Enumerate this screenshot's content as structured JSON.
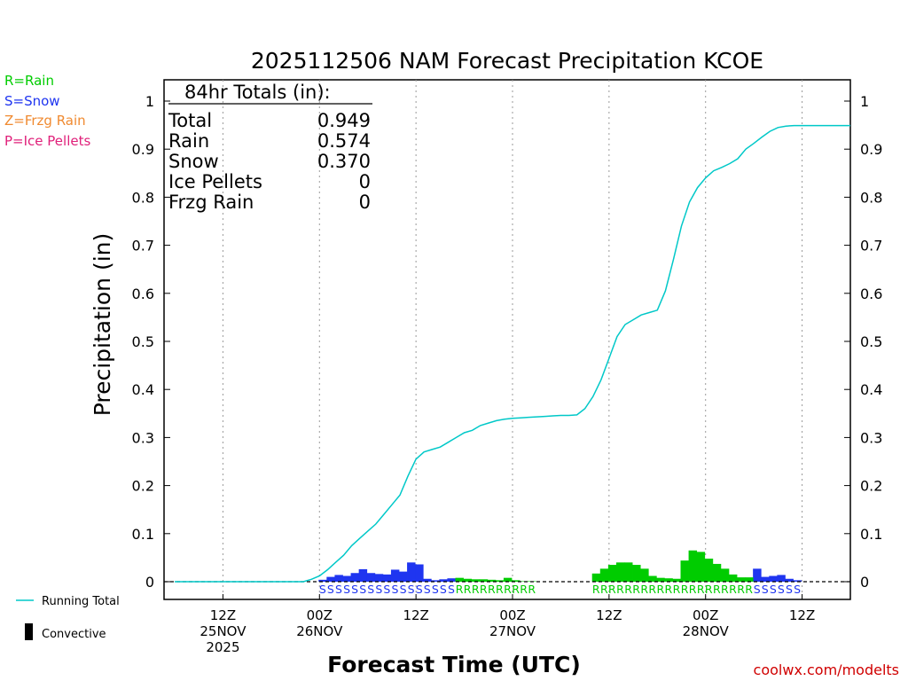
{
  "colors": {
    "rain": "#00cc00",
    "snow": "#1f35f0",
    "frzg_rain": "#f08a30",
    "ice_pellets": "#e0207a",
    "running_total": "#00c8c8",
    "link": "#d00000",
    "axis": "#000000"
  },
  "legend": {
    "rain": "R=Rain",
    "snow": "S=Snow",
    "frzg_rain": "Z=Frzg Rain",
    "ice_pellets": "P=Ice Pellets",
    "running_total": "Running Total",
    "convective": "Convective"
  },
  "totals": {
    "header": "84hr Totals (in):",
    "rows": [
      {
        "label": "Total",
        "value": "0.949"
      },
      {
        "label": "Rain",
        "value": "0.574"
      },
      {
        "label": "Snow",
        "value": "0.370"
      },
      {
        "label": "Ice Pellets",
        "value": "0"
      },
      {
        "label": "Frzg Rain",
        "value": "0"
      }
    ]
  },
  "footer": {
    "site": "coolwx.com/modelts"
  },
  "chart_data": {
    "type": "bar",
    "title": "2025112506 NAM Forecast Precipitation KCOE",
    "xlabel": "Forecast Time (UTC)",
    "ylabel": "Precipitation (in)",
    "x_unit": "forecast hour",
    "xlim": [
      0,
      84
    ],
    "ylim": [
      0,
      1.05
    ],
    "y_ticks": [
      0,
      0.1,
      0.2,
      0.3,
      0.4,
      0.5,
      0.6,
      0.7,
      0.8,
      0.9,
      1
    ],
    "y_tick_labels": [
      "0",
      "0.1",
      "0.2",
      "0.3",
      "0.4",
      "0.5",
      "0.6",
      "0.7",
      "0.8",
      "0.9",
      "1"
    ],
    "x_ticks": [
      {
        "hour": 6,
        "lines": [
          "12Z",
          "25NOV",
          "2025"
        ]
      },
      {
        "hour": 18,
        "lines": [
          "00Z",
          "26NOV"
        ]
      },
      {
        "hour": 30,
        "lines": [
          "12Z"
        ]
      },
      {
        "hour": 42,
        "lines": [
          "00Z",
          "27NOV"
        ]
      },
      {
        "hour": 54,
        "lines": [
          "12Z"
        ]
      },
      {
        "hour": 66,
        "lines": [
          "00Z",
          "28NOV"
        ]
      },
      {
        "hour": 78,
        "lines": [
          "12Z"
        ]
      }
    ],
    "grid": "vertical dotted at tick hours",
    "series": [
      {
        "name": "Snow",
        "type": "bar",
        "hours": [
          18,
          19,
          20,
          21,
          22,
          23,
          24,
          25,
          26,
          27,
          28,
          29,
          30,
          31,
          32,
          33,
          34,
          72,
          73,
          74,
          75,
          76,
          77
        ],
        "values": [
          0.004,
          0.01,
          0.014,
          0.012,
          0.018,
          0.026,
          0.018,
          0.016,
          0.015,
          0.025,
          0.021,
          0.04,
          0.036,
          0.006,
          0.003,
          0.005,
          0.007,
          0.027,
          0.01,
          0.012,
          0.014,
          0.006,
          0.003
        ]
      },
      {
        "name": "Rain",
        "type": "bar",
        "hours": [
          35,
          36,
          37,
          38,
          39,
          40,
          41,
          42,
          43,
          44,
          45,
          46,
          47,
          48,
          49,
          50,
          51,
          52,
          53,
          54,
          55,
          56,
          57,
          58,
          59,
          60,
          61,
          62,
          63,
          64,
          65,
          66,
          67,
          68,
          69,
          70,
          71
        ],
        "values": [
          0.008,
          0.006,
          0.005,
          0.005,
          0.004,
          0.003,
          0.008,
          0.003,
          0.001,
          0.001,
          0.0,
          0.0,
          0.0,
          0.0,
          0.0,
          0.0,
          0.0,
          0.017,
          0.027,
          0.035,
          0.04,
          0.04,
          0.035,
          0.027,
          0.012,
          0.008,
          0.007,
          0.006,
          0.044,
          0.065,
          0.062,
          0.048,
          0.037,
          0.027,
          0.015,
          0.009,
          0.009
        ]
      },
      {
        "name": "Running Total",
        "type": "line",
        "x": [
          0,
          16,
          17,
          18,
          19,
          20,
          21,
          22,
          23,
          24,
          25,
          26,
          27,
          28,
          29,
          30,
          31,
          32,
          33,
          34,
          35,
          36,
          37,
          38,
          39,
          40,
          41,
          42,
          43,
          44,
          45,
          46,
          47,
          48,
          49,
          50,
          51,
          52,
          53,
          54,
          55,
          56,
          57,
          58,
          59,
          60,
          61,
          62,
          63,
          64,
          65,
          66,
          67,
          68,
          69,
          70,
          71,
          72,
          73,
          74,
          75,
          76,
          77,
          78,
          79,
          80,
          81,
          82,
          83,
          84
        ],
        "y": [
          0,
          0,
          0.005,
          0.012,
          0.025,
          0.04,
          0.055,
          0.075,
          0.09,
          0.105,
          0.12,
          0.14,
          0.16,
          0.18,
          0.22,
          0.255,
          0.27,
          0.275,
          0.28,
          0.29,
          0.3,
          0.31,
          0.315,
          0.325,
          0.33,
          0.335,
          0.338,
          0.34,
          0.341,
          0.342,
          0.343,
          0.344,
          0.345,
          0.346,
          0.346,
          0.347,
          0.36,
          0.385,
          0.42,
          0.465,
          0.51,
          0.535,
          0.545,
          0.555,
          0.56,
          0.565,
          0.605,
          0.67,
          0.74,
          0.79,
          0.82,
          0.84,
          0.855,
          0.862,
          0.87,
          0.88,
          0.9,
          0.912,
          0.925,
          0.937,
          0.945,
          0.948,
          0.949,
          0.949,
          0.949,
          0.949,
          0.949,
          0.949,
          0.949,
          0.949
        ]
      }
    ],
    "ptype_strings": [
      {
        "start_hour": 18,
        "text": "SSSSSSSSSSSSSSSSS",
        "color_key": "snow"
      },
      {
        "start_hour": 35,
        "text": "RRRRRRRRRR",
        "color_key": "rain"
      },
      {
        "start_hour": 52,
        "text": "RRRRRRRRRRRRRRRRRRRR",
        "color_key": "rain"
      },
      {
        "start_hour": 72,
        "text": "SSSSSS",
        "color_key": "snow"
      }
    ]
  }
}
